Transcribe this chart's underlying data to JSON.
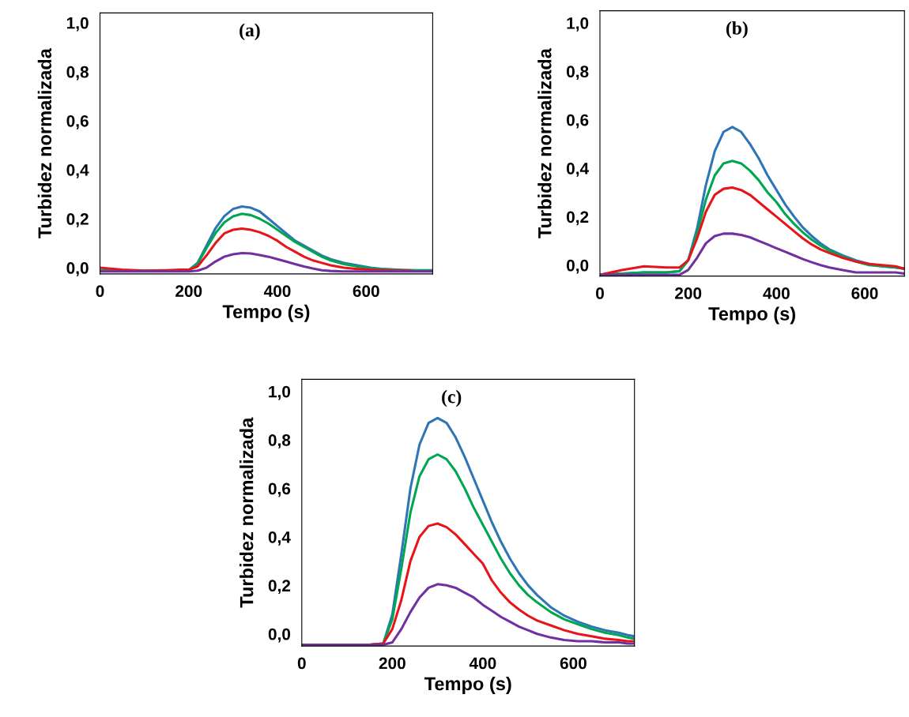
{
  "chart_data": [
    {
      "type": "line",
      "xlabel": "Tempo (s)",
      "ylabel": "Turbidez normalizada",
      "annotations": [
        "(a)"
      ],
      "xlim": [
        0,
        750
      ],
      "xticks": [
        0,
        200,
        400,
        600
      ],
      "ylim": [
        -0.025,
        1.04
      ],
      "yticks": [
        {
          "value": 0,
          "label": "0,0"
        },
        {
          "value": 0.2,
          "label": "0,2"
        },
        {
          "value": 0.4,
          "label": "0,4"
        },
        {
          "value": 0.6,
          "label": "0,6"
        },
        {
          "value": 0.8,
          "label": "0,8"
        },
        {
          "value": 1.0,
          "label": "1,0"
        }
      ],
      "grid": false,
      "x": [
        0,
        50,
        100,
        150,
        180,
        200,
        220,
        240,
        260,
        280,
        300,
        320,
        340,
        360,
        380,
        400,
        420,
        440,
        460,
        480,
        500,
        520,
        550,
        580,
        610,
        640,
        670,
        700,
        730,
        750
      ],
      "series": [
        {
          "color": "#2e75b6",
          "values": [
            null,
            null,
            null,
            null,
            -0.012,
            -0.01,
            0.02,
            0.09,
            0.16,
            0.21,
            0.24,
            0.25,
            0.245,
            0.23,
            0.2,
            0.17,
            0.14,
            0.11,
            0.09,
            0.07,
            0.05,
            0.035,
            0.02,
            0.01,
            0.0,
            -0.005,
            -0.008,
            -0.01,
            -0.01,
            -0.01
          ]
        },
        {
          "color": "#00a651",
          "values": [
            -0.01,
            -0.01,
            -0.012,
            -0.012,
            -0.012,
            -0.01,
            0.015,
            0.08,
            0.14,
            0.185,
            0.21,
            0.22,
            0.215,
            0.2,
            0.18,
            0.155,
            0.13,
            0.105,
            0.085,
            0.065,
            0.045,
            0.03,
            0.015,
            0.005,
            -0.003,
            -0.007,
            -0.01,
            -0.01,
            -0.012,
            -0.012
          ]
        },
        {
          "color": "#e8141b",
          "values": [
            0.0,
            -0.008,
            -0.012,
            -0.01,
            -0.008,
            -0.008,
            0.005,
            0.05,
            0.1,
            0.14,
            0.155,
            0.16,
            0.155,
            0.145,
            0.13,
            0.11,
            0.085,
            0.065,
            0.045,
            0.03,
            0.02,
            0.01,
            0.0,
            -0.005,
            -0.008,
            -0.01,
            -0.012,
            -0.012,
            null,
            null
          ]
        },
        {
          "color": "#7030a0",
          "values": [
            -0.015,
            -0.015,
            -0.015,
            -0.015,
            -0.015,
            -0.015,
            -0.012,
            0.0,
            0.025,
            0.045,
            0.055,
            0.06,
            0.058,
            0.052,
            0.045,
            0.035,
            0.025,
            0.015,
            0.005,
            -0.003,
            -0.01,
            -0.013,
            -0.015,
            -0.015,
            -0.015,
            -0.015,
            -0.015,
            -0.015,
            -0.015,
            -0.015
          ]
        }
      ]
    },
    {
      "type": "line",
      "xlabel": "Tempo (s)",
      "ylabel": "Turbidez normalizada",
      "annotations": [
        "(b)"
      ],
      "xlim": [
        0,
        690
      ],
      "xticks": [
        0,
        200,
        400,
        600
      ],
      "ylim": [
        -0.045,
        1.05
      ],
      "yticks": [
        {
          "value": 0,
          "label": "0,0"
        },
        {
          "value": 0.2,
          "label": "0,2"
        },
        {
          "value": 0.4,
          "label": "0,4"
        },
        {
          "value": 0.6,
          "label": "0,6"
        },
        {
          "value": 0.8,
          "label": "0,8"
        },
        {
          "value": 1.0,
          "label": "1,0"
        }
      ],
      "grid": false,
      "x": [
        0,
        50,
        100,
        150,
        180,
        200,
        220,
        240,
        260,
        280,
        300,
        320,
        340,
        360,
        380,
        400,
        420,
        440,
        460,
        480,
        500,
        520,
        550,
        580,
        610,
        640,
        670,
        690
      ],
      "series": [
        {
          "color": "#2e75b6",
          "values": [
            -0.04,
            -0.035,
            -0.03,
            -0.03,
            -0.025,
            0.02,
            0.15,
            0.33,
            0.47,
            0.55,
            0.57,
            0.55,
            0.5,
            0.44,
            0.37,
            0.31,
            0.25,
            0.2,
            0.155,
            0.12,
            0.09,
            0.065,
            0.04,
            0.02,
            0.005,
            -0.005,
            -0.01,
            -0.015
          ]
        },
        {
          "color": "#00a651",
          "values": [
            -0.04,
            -0.035,
            -0.03,
            -0.03,
            -0.025,
            0.02,
            0.13,
            0.27,
            0.37,
            0.42,
            0.43,
            0.42,
            0.39,
            0.35,
            0.3,
            0.26,
            0.21,
            0.17,
            0.135,
            0.105,
            0.08,
            0.06,
            0.035,
            0.015,
            0.0,
            -0.005,
            -0.01,
            -0.015
          ]
        },
        {
          "color": "#e8141b",
          "values": [
            -0.04,
            -0.02,
            -0.005,
            -0.01,
            -0.01,
            0.02,
            0.11,
            0.22,
            0.29,
            0.315,
            0.32,
            0.31,
            0.29,
            0.26,
            0.23,
            0.2,
            0.17,
            0.14,
            0.11,
            0.085,
            0.065,
            0.05,
            0.03,
            0.015,
            0.005,
            0.0,
            -0.005,
            -0.015
          ]
        },
        {
          "color": "#7030a0",
          "values": [
            -0.04,
            -0.04,
            -0.04,
            -0.04,
            -0.04,
            -0.02,
            0.03,
            0.09,
            0.12,
            0.13,
            0.13,
            0.125,
            0.115,
            0.1,
            0.085,
            0.07,
            0.055,
            0.04,
            0.025,
            0.012,
            0.0,
            -0.01,
            -0.02,
            -0.03,
            -0.03,
            -0.03,
            -0.03,
            -0.035
          ]
        }
      ]
    },
    {
      "type": "line",
      "xlabel": "Tempo (s)",
      "ylabel": "Turbidez normalizada",
      "annotations": [
        "(c)"
      ],
      "xlim": [
        0,
        735
      ],
      "xticks": [
        0,
        200,
        400,
        600
      ],
      "ylim": [
        -0.05,
        1.05
      ],
      "yticks": [
        {
          "value": 0,
          "label": "0,0"
        },
        {
          "value": 0.2,
          "label": "0,2"
        },
        {
          "value": 0.4,
          "label": "0,4"
        },
        {
          "value": 0.6,
          "label": "0,6"
        },
        {
          "value": 0.8,
          "label": "0,8"
        },
        {
          "value": 1.0,
          "label": "1,0"
        }
      ],
      "grid": false,
      "x": [
        0,
        50,
        100,
        150,
        180,
        200,
        220,
        240,
        260,
        280,
        300,
        320,
        340,
        360,
        380,
        400,
        420,
        440,
        460,
        480,
        500,
        520,
        550,
        580,
        610,
        640,
        670,
        700,
        720,
        735
      ],
      "series": [
        {
          "color": "#2e75b6",
          "values": [
            null,
            null,
            null,
            -0.045,
            -0.04,
            0.08,
            0.33,
            0.6,
            0.78,
            0.87,
            0.89,
            0.87,
            0.81,
            0.73,
            0.64,
            0.55,
            0.46,
            0.38,
            0.31,
            0.25,
            0.2,
            0.16,
            0.11,
            0.075,
            0.05,
            0.03,
            0.015,
            0.005,
            -0.005,
            -0.01
          ]
        },
        {
          "color": "#00a651",
          "values": [
            null,
            null,
            null,
            -0.045,
            -0.04,
            0.06,
            0.27,
            0.5,
            0.65,
            0.72,
            0.74,
            0.72,
            0.67,
            0.6,
            0.52,
            0.45,
            0.38,
            0.31,
            0.25,
            0.2,
            0.16,
            0.13,
            0.09,
            0.06,
            0.04,
            0.02,
            0.005,
            -0.005,
            -0.015,
            -0.02
          ]
        },
        {
          "color": "#e8141b",
          "values": [
            null,
            null,
            null,
            -0.045,
            -0.04,
            0.02,
            0.14,
            0.3,
            0.4,
            0.445,
            0.455,
            0.44,
            0.41,
            0.37,
            0.33,
            0.29,
            0.22,
            0.17,
            0.13,
            0.1,
            0.075,
            0.055,
            0.035,
            0.015,
            0.0,
            -0.01,
            -0.02,
            -0.025,
            -0.03,
            -0.03
          ]
        },
        {
          "color": "#7030a0",
          "values": [
            -0.045,
            -0.045,
            -0.045,
            -0.045,
            -0.045,
            -0.035,
            0.02,
            0.09,
            0.15,
            0.19,
            0.205,
            0.2,
            0.19,
            0.17,
            0.15,
            0.12,
            0.095,
            0.07,
            0.05,
            0.03,
            0.015,
            0.0,
            -0.015,
            -0.025,
            -0.03,
            -0.03,
            -0.035,
            -0.035,
            -0.04,
            -0.04
          ]
        }
      ]
    }
  ]
}
